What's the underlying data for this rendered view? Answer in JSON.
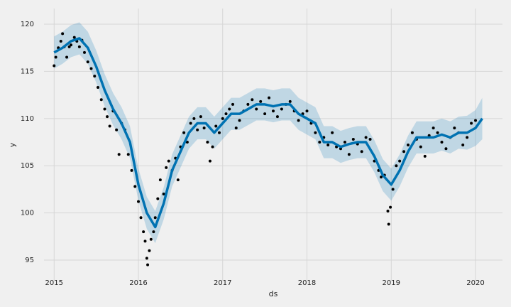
{
  "chart_data": {
    "type": "forecast",
    "x_label": "ds",
    "y_label": "y",
    "xlim": [
      2014.88,
      2020.32
    ],
    "ylim": [
      92.74,
      121.66
    ],
    "xticks": [
      2015,
      2016,
      2017,
      2018,
      2019,
      2020
    ],
    "yticks": [
      95,
      100,
      105,
      110,
      115,
      120
    ],
    "grid": true,
    "forecast": {
      "color": "#0072B2",
      "x": [
        2015.0,
        2015.1,
        2015.2,
        2015.3,
        2015.4,
        2015.5,
        2015.6,
        2015.7,
        2015.8,
        2015.9,
        2016.0,
        2016.1,
        2016.2,
        2016.3,
        2016.4,
        2016.5,
        2016.6,
        2016.7,
        2016.8,
        2016.9,
        2017.0,
        2017.1,
        2017.2,
        2017.3,
        2017.4,
        2017.5,
        2017.6,
        2017.7,
        2017.8,
        2017.9,
        2018.0,
        2018.1,
        2018.2,
        2018.3,
        2018.4,
        2018.5,
        2018.6,
        2018.7,
        2018.8,
        2018.9,
        2019.0,
        2019.1,
        2019.2,
        2019.3,
        2019.4,
        2019.5,
        2019.6,
        2019.7,
        2019.8,
        2019.9,
        2020.0,
        2020.08
      ],
      "yhat": [
        117,
        117.5,
        118.2,
        118.5,
        117.5,
        115.5,
        113,
        111,
        109.5,
        107.5,
        103,
        100,
        98.5,
        101,
        104.5,
        106.5,
        108.5,
        109.5,
        109.5,
        108.5,
        109.5,
        110.5,
        110.5,
        111,
        111.5,
        111.5,
        111.3,
        111.5,
        111.5,
        110.5,
        110,
        109.5,
        107.5,
        107.5,
        107,
        107.3,
        107.5,
        107.5,
        106,
        104,
        103,
        104.5,
        106.5,
        108,
        108,
        108,
        108.3,
        108,
        108.5,
        108.5,
        109,
        110
      ],
      "yhat_lower": [
        115.3,
        115.8,
        116.5,
        116.8,
        115.8,
        113.8,
        111.3,
        109.3,
        107.8,
        105.8,
        101.3,
        98.3,
        96.8,
        99.3,
        102.8,
        104.8,
        106.8,
        107.8,
        107.8,
        106.8,
        107.8,
        108.8,
        108.8,
        109.3,
        109.8,
        109.8,
        109.6,
        109.8,
        109.8,
        108.8,
        108.3,
        107.8,
        105.8,
        105.8,
        105.3,
        105.6,
        105.8,
        105.8,
        104.3,
        102.3,
        101.3,
        102.8,
        104.8,
        106.3,
        106.3,
        106.3,
        106.6,
        106.3,
        106.8,
        106.7,
        107.1,
        107.8
      ],
      "yhat_upper": [
        118.7,
        119.2,
        119.9,
        120.2,
        119.2,
        117.2,
        114.7,
        112.7,
        111.2,
        109.2,
        104.7,
        101.7,
        100.2,
        102.7,
        106.2,
        108.2,
        110.2,
        111.2,
        111.2,
        110.2,
        111.2,
        112.2,
        112.2,
        112.7,
        113.2,
        113.2,
        113.0,
        113.2,
        113.2,
        112.2,
        111.7,
        111.2,
        109.2,
        109.2,
        108.7,
        109.0,
        109.2,
        109.2,
        107.7,
        105.7,
        104.7,
        106.2,
        108.2,
        109.7,
        109.7,
        109.7,
        110.0,
        109.7,
        110.2,
        110.3,
        110.9,
        112.2
      ]
    },
    "points": {
      "color": "#000000",
      "x": [
        2015.0,
        2015.02,
        2015.05,
        2015.08,
        2015.1,
        2015.12,
        2015.15,
        2015.18,
        2015.2,
        2015.24,
        2015.27,
        2015.3,
        2015.33,
        2015.36,
        2015.4,
        2015.44,
        2015.48,
        2015.52,
        2015.56,
        2015.6,
        2015.63,
        2015.66,
        2015.7,
        2015.74,
        2015.77,
        2015.8,
        2015.84,
        2015.88,
        2015.92,
        2015.96,
        2016.0,
        2016.03,
        2016.06,
        2016.08,
        2016.1,
        2016.11,
        2016.13,
        2016.15,
        2016.18,
        2016.2,
        2016.23,
        2016.26,
        2016.3,
        2016.33,
        2016.36,
        2016.4,
        2016.44,
        2016.47,
        2016.5,
        2016.54,
        2016.58,
        2016.62,
        2016.66,
        2016.7,
        2016.74,
        2016.78,
        2016.82,
        2016.85,
        2016.88,
        2016.92,
        2016.96,
        2017.0,
        2017.04,
        2017.08,
        2017.12,
        2017.16,
        2017.2,
        2017.25,
        2017.3,
        2017.35,
        2017.4,
        2017.45,
        2017.5,
        2017.55,
        2017.6,
        2017.65,
        2017.7,
        2017.75,
        2017.8,
        2017.85,
        2017.9,
        2017.95,
        2018.0,
        2018.05,
        2018.1,
        2018.15,
        2018.2,
        2018.25,
        2018.3,
        2018.35,
        2018.4,
        2018.45,
        2018.5,
        2018.55,
        2018.6,
        2018.65,
        2018.7,
        2018.75,
        2018.8,
        2018.85,
        2018.88,
        2018.92,
        2018.96,
        2018.97,
        2018.99,
        2019.02,
        2019.06,
        2019.1,
        2019.15,
        2019.2,
        2019.25,
        2019.3,
        2019.35,
        2019.4,
        2019.45,
        2019.5,
        2019.55,
        2019.6,
        2019.65,
        2019.7,
        2019.75,
        2019.8,
        2019.85,
        2019.9,
        2019.95,
        2020.0
      ],
      "y": [
        115.6,
        116.5,
        117.5,
        118.2,
        119.0,
        117.6,
        116.5,
        117.6,
        117.8,
        118.6,
        118.2,
        117.6,
        118.3,
        117.0,
        116.0,
        115.3,
        114.5,
        113.3,
        112.0,
        111.0,
        110.2,
        109.2,
        110.8,
        108.8,
        106.2,
        109.5,
        108.8,
        106.2,
        104.5,
        102.8,
        101.2,
        99.5,
        98.0,
        97.0,
        95.2,
        94.5,
        96.0,
        97.2,
        98.0,
        99.5,
        101.5,
        103.5,
        102.0,
        104.8,
        105.5,
        104.5,
        105.8,
        103.5,
        107.0,
        108.5,
        107.5,
        109.5,
        110.0,
        108.8,
        110.2,
        109.0,
        107.5,
        105.5,
        107.0,
        109.2,
        108.5,
        110.0,
        110.5,
        111.0,
        111.5,
        109.0,
        109.8,
        110.8,
        111.5,
        112.0,
        111.0,
        111.8,
        110.5,
        112.2,
        110.8,
        110.2,
        111.0,
        111.5,
        111.8,
        110.8,
        109.8,
        110.5,
        110.8,
        109.5,
        108.5,
        107.5,
        108.0,
        107.2,
        108.5,
        107.0,
        106.8,
        107.5,
        106.2,
        107.8,
        107.3,
        106.5,
        108.0,
        107.8,
        105.5,
        104.5,
        103.8,
        104.0,
        100.2,
        98.8,
        100.6,
        102.5,
        105.0,
        105.5,
        106.5,
        107.2,
        108.5,
        107.8,
        107.0,
        106.0,
        108.2,
        109.0,
        108.5,
        107.5,
        106.8,
        108.0,
        109.0,
        108.5,
        107.2,
        108.0,
        109.5,
        109.8
      ]
    }
  }
}
